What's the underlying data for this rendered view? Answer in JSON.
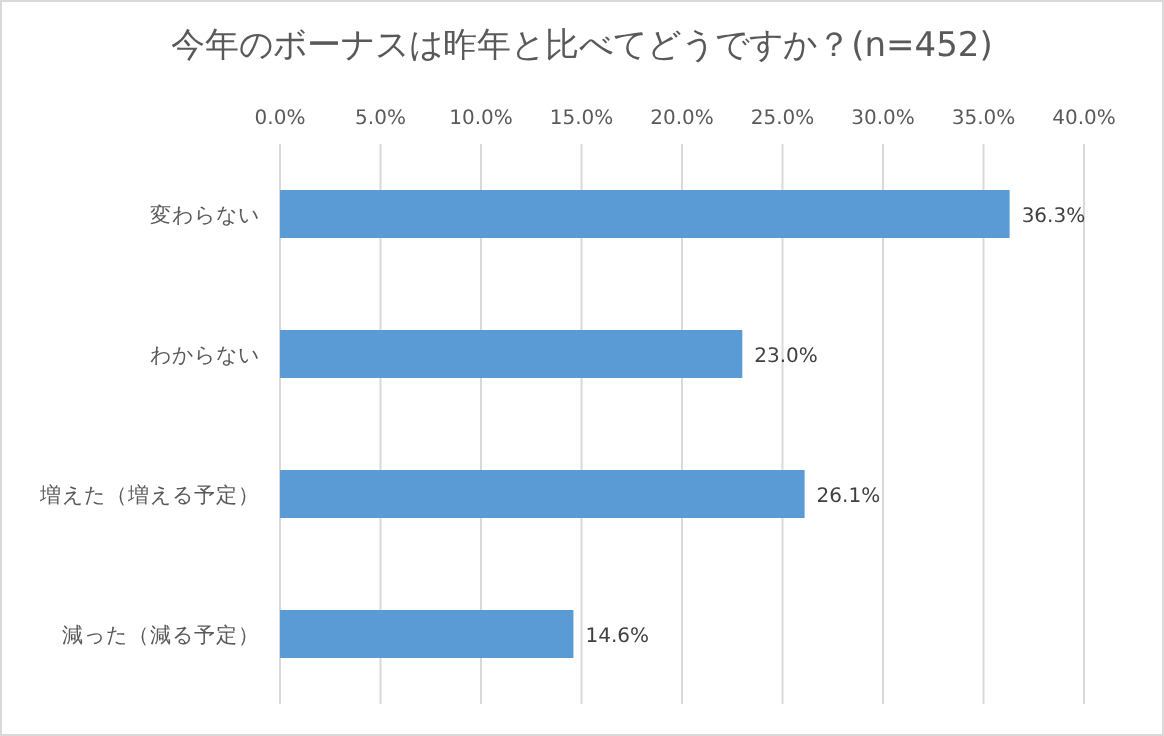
{
  "chart_data": {
    "type": "bar",
    "orientation": "horizontal",
    "title": "今年のボーナスは昨年と比べてどうですか？(n=452)",
    "categories": [
      "変わらない",
      "わからない",
      "増えた（増える予定）",
      "減った（減る予定）"
    ],
    "values": [
      36.3,
      23.0,
      26.1,
      14.6
    ],
    "value_labels": [
      "36.3%",
      "23.0%",
      "26.1%",
      "14.6%"
    ],
    "color": "#5b9bd5",
    "xlim": [
      0,
      40
    ],
    "xticks": [
      {
        "value": 0,
        "label": "0.0%"
      },
      {
        "value": 5,
        "label": "5.0%"
      },
      {
        "value": 10,
        "label": "10.0%"
      },
      {
        "value": 15,
        "label": "15.0%"
      },
      {
        "value": 20,
        "label": "20.0%"
      },
      {
        "value": 25,
        "label": "25.0%"
      },
      {
        "value": 30,
        "label": "30.0%"
      },
      {
        "value": 35,
        "label": "35.0%"
      },
      {
        "value": 40,
        "label": "40.0%"
      }
    ],
    "grid": "x"
  }
}
